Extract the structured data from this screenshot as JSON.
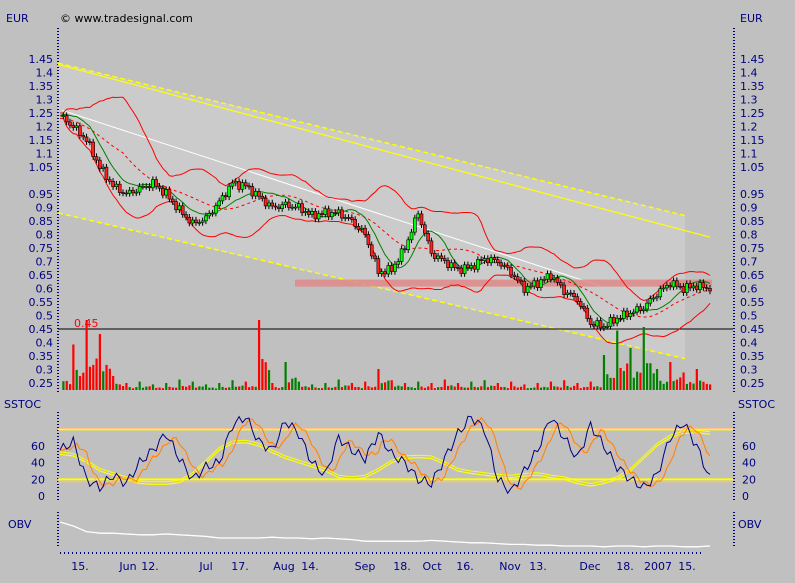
{
  "header": {
    "currency_left": "EUR",
    "currency_right": "EUR",
    "copyright": "© www.tradesignal.com"
  },
  "panels": {
    "stoch_left": "SSTOC",
    "stoch_right": "SSTOC",
    "obv_left": "OBV",
    "obv_right": "OBV"
  },
  "colors": {
    "background": "#c0c0c0",
    "channel": "#cbcbcb",
    "axis": "#000080",
    "up_candle": "#00ff00",
    "down_candle": "#ff2020",
    "bollinger": "#ff0000",
    "green_line": "#008000",
    "regression": "#ffff00",
    "trendline": "#ffffff",
    "support_zone": "#e08888",
    "stoch_main": "#000080",
    "stoch_signal": "#ff8000",
    "stoch_slow": "#ffff00"
  },
  "chart_data": {
    "type": "candlestick",
    "price_axis": {
      "label": "EUR",
      "ylim": [
        0.25,
        1.45
      ],
      "ticks": [
        "1.45",
        "1.4",
        "1.35",
        "1.3",
        "1.25",
        "1.2",
        "1.15",
        "1.1",
        "1.05",
        "0.95",
        "0.9",
        "0.85",
        "0.8",
        "0.75",
        "0.7",
        "0.65",
        "0.6",
        "0.55",
        "0.5",
        "0.45",
        "0.4",
        "0.35",
        "0.3",
        "0.25"
      ]
    },
    "x_ticks": [
      "15.",
      "Jun",
      "12.",
      "Jul",
      "17.",
      "Aug",
      "14.",
      "Sep",
      "18.",
      "Oct",
      "16.",
      "Nov",
      "13.",
      "Dec",
      "18.",
      "2007",
      "15."
    ],
    "close": [
      1.24,
      1.2,
      1.15,
      1.05,
      0.98,
      0.95,
      0.97,
      0.99,
      0.95,
      0.89,
      0.84,
      0.86,
      0.92,
      0.99,
      0.98,
      0.94,
      0.9,
      0.91,
      0.9,
      0.87,
      0.88,
      0.88,
      0.85,
      0.8,
      0.66,
      0.67,
      0.75,
      0.88,
      0.73,
      0.7,
      0.67,
      0.68,
      0.71,
      0.7,
      0.66,
      0.6,
      0.62,
      0.65,
      0.59,
      0.56,
      0.47,
      0.46,
      0.49,
      0.51,
      0.53,
      0.58,
      0.62,
      0.6,
      0.61,
      0.6
    ],
    "volume_relative": [
      30,
      65,
      100,
      80,
      20,
      10,
      12,
      8,
      10,
      15,
      12,
      8,
      10,
      14,
      12,
      100,
      10,
      40,
      12,
      8,
      10,
      15,
      10,
      12,
      30,
      14,
      10,
      12,
      10,
      15,
      10,
      12,
      14,
      10,
      12,
      8,
      10,
      12,
      14,
      10,
      12,
      50,
      85,
      60,
      90,
      30,
      40,
      25,
      30,
      8
    ],
    "reference_line": {
      "value": 0.45,
      "label": "0.45"
    },
    "support_zone": {
      "value": 0.62
    },
    "regression_channel": {
      "start": {
        "upper": 1.435,
        "middle": 1.43,
        "lower": 0.88
      },
      "end": {
        "upper": 0.87,
        "middle": 0.79,
        "lower": 0.34
      }
    },
    "trendline": {
      "start": 1.26,
      "end": 0.61
    },
    "stochastic": {
      "label": "SSTOC",
      "ticks": [
        "60",
        "40",
        "20",
        "0"
      ],
      "ylim": [
        0,
        100
      ],
      "levels": [
        20,
        80
      ],
      "main": [
        55,
        65,
        20,
        10,
        25,
        15,
        40,
        55,
        75,
        45,
        20,
        35,
        40,
        85,
        95,
        65,
        55,
        90,
        75,
        40,
        25,
        70,
        55,
        45,
        75,
        50,
        40,
        20,
        15,
        45,
        75,
        95,
        80,
        20,
        5,
        30,
        55,
        95,
        70,
        45,
        85,
        60,
        35,
        20,
        10,
        25,
        70,
        88,
        60,
        20
      ],
      "slow": [
        50,
        48,
        40,
        30,
        25,
        20,
        15,
        14,
        14,
        16,
        25,
        40,
        55,
        63,
        64,
        60,
        52,
        45,
        40,
        35,
        30,
        22,
        20,
        22,
        30,
        40,
        45,
        46,
        45,
        38,
        30,
        27,
        25,
        23,
        22,
        24,
        25,
        22,
        20,
        15,
        12,
        15,
        20,
        30,
        45,
        60,
        70,
        75,
        76,
        74
      ]
    },
    "obv": {
      "label": "OBV",
      "values_relative": [
        100,
        95,
        88,
        86,
        86,
        85,
        84,
        84,
        85,
        84,
        83,
        82,
        80,
        80,
        80,
        80,
        81,
        80,
        80,
        79,
        80,
        79,
        78,
        76,
        76,
        76,
        76,
        76,
        77,
        76,
        75,
        74,
        74,
        73,
        72,
        72,
        71,
        71,
        70,
        70,
        70,
        69,
        70,
        70,
        69,
        70,
        70,
        69,
        69,
        70
      ]
    }
  }
}
